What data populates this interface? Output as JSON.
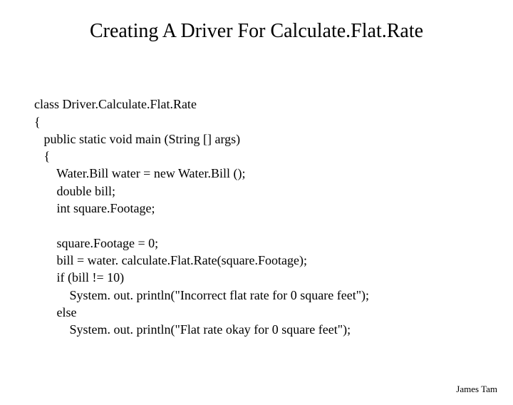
{
  "title": "Creating A Driver For Calculate.Flat.Rate",
  "code": {
    "line1": "class Driver.Calculate.Flat.Rate",
    "line2": "{",
    "line3": "   public static void main (String [] args)",
    "line4": "   {",
    "line5": "       Water.Bill water = new Water.Bill ();",
    "line6": "       double bill;",
    "line7": "       int square.Footage;",
    "line8": "",
    "line9": "       square.Footage = 0;",
    "line10": "       bill = water. calculate.Flat.Rate(square.Footage);",
    "line11": "       if (bill != 10)",
    "line12": "           System. out. println(\"Incorrect flat rate for 0 square feet\");",
    "line13": "       else",
    "line14": "           System. out. println(\"Flat rate okay for 0 square feet\");"
  },
  "footer": "James Tam",
  "styling": {
    "background_color": "#ffffff",
    "text_color": "#000000",
    "title_fontsize": 28,
    "body_fontsize": 18,
    "footer_fontsize": 13,
    "font_family": "Times New Roman"
  }
}
